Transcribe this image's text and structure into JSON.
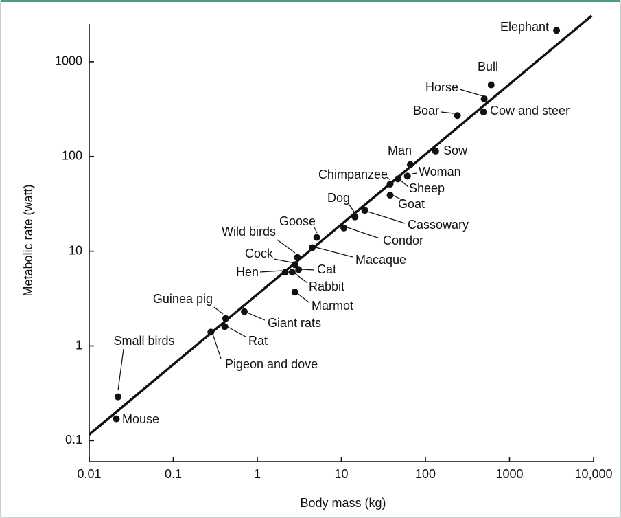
{
  "chart_data": {
    "type": "scatter",
    "xlabel": "Body mass (kg)",
    "ylabel": "Metabolic rate (watt)",
    "xscale": "log",
    "yscale": "log",
    "xlim": [
      0.01,
      10000
    ],
    "ylim": [
      0.06,
      2500
    ],
    "xticks": [
      0.01,
      0.1,
      1,
      10,
      100,
      1000,
      {
        "value": 10000,
        "label": "10,000"
      }
    ],
    "yticks": [
      0.1,
      1,
      10,
      100,
      1000
    ],
    "color": "#111111",
    "labels": [
      "Elephant",
      "Bull",
      "Horse",
      "Cow and steer",
      "Boar",
      "Sow",
      "Man",
      "Woman",
      "Sheep",
      "Chimpanzee",
      "Goat",
      "Cassowary",
      "Dog",
      "Condor",
      "Goose",
      "Macaque",
      "Wild birds",
      "Cock",
      "Cat",
      "Hen",
      "Rabbit",
      "Marmot",
      "Giant rats",
      "Guinea pig",
      "Rat",
      "Pigeon and dove",
      "Small birds",
      "Mouse"
    ],
    "x": [
      3630,
      605,
      500,
      490,
      240,
      132,
      66,
      61,
      47,
      38,
      38,
      19,
      14.5,
      10.7,
      5.1,
      4.5,
      3.0,
      2.8,
      3.1,
      2.15,
      2.6,
      2.8,
      0.7,
      0.42,
      0.41,
      0.28,
      0.022,
      0.021
    ],
    "values": [
      2140,
      570,
      405,
      295,
      270,
      114,
      82,
      62,
      58,
      51,
      39,
      27,
      23,
      17.6,
      14,
      10.9,
      8.6,
      7.2,
      6.4,
      6.0,
      6.0,
      3.7,
      2.3,
      1.95,
      1.6,
      1.4,
      0.29,
      0.17
    ],
    "fit_line": {
      "x": [
        0.01,
        9500
      ],
      "y": [
        0.116,
        3060
      ]
    }
  }
}
